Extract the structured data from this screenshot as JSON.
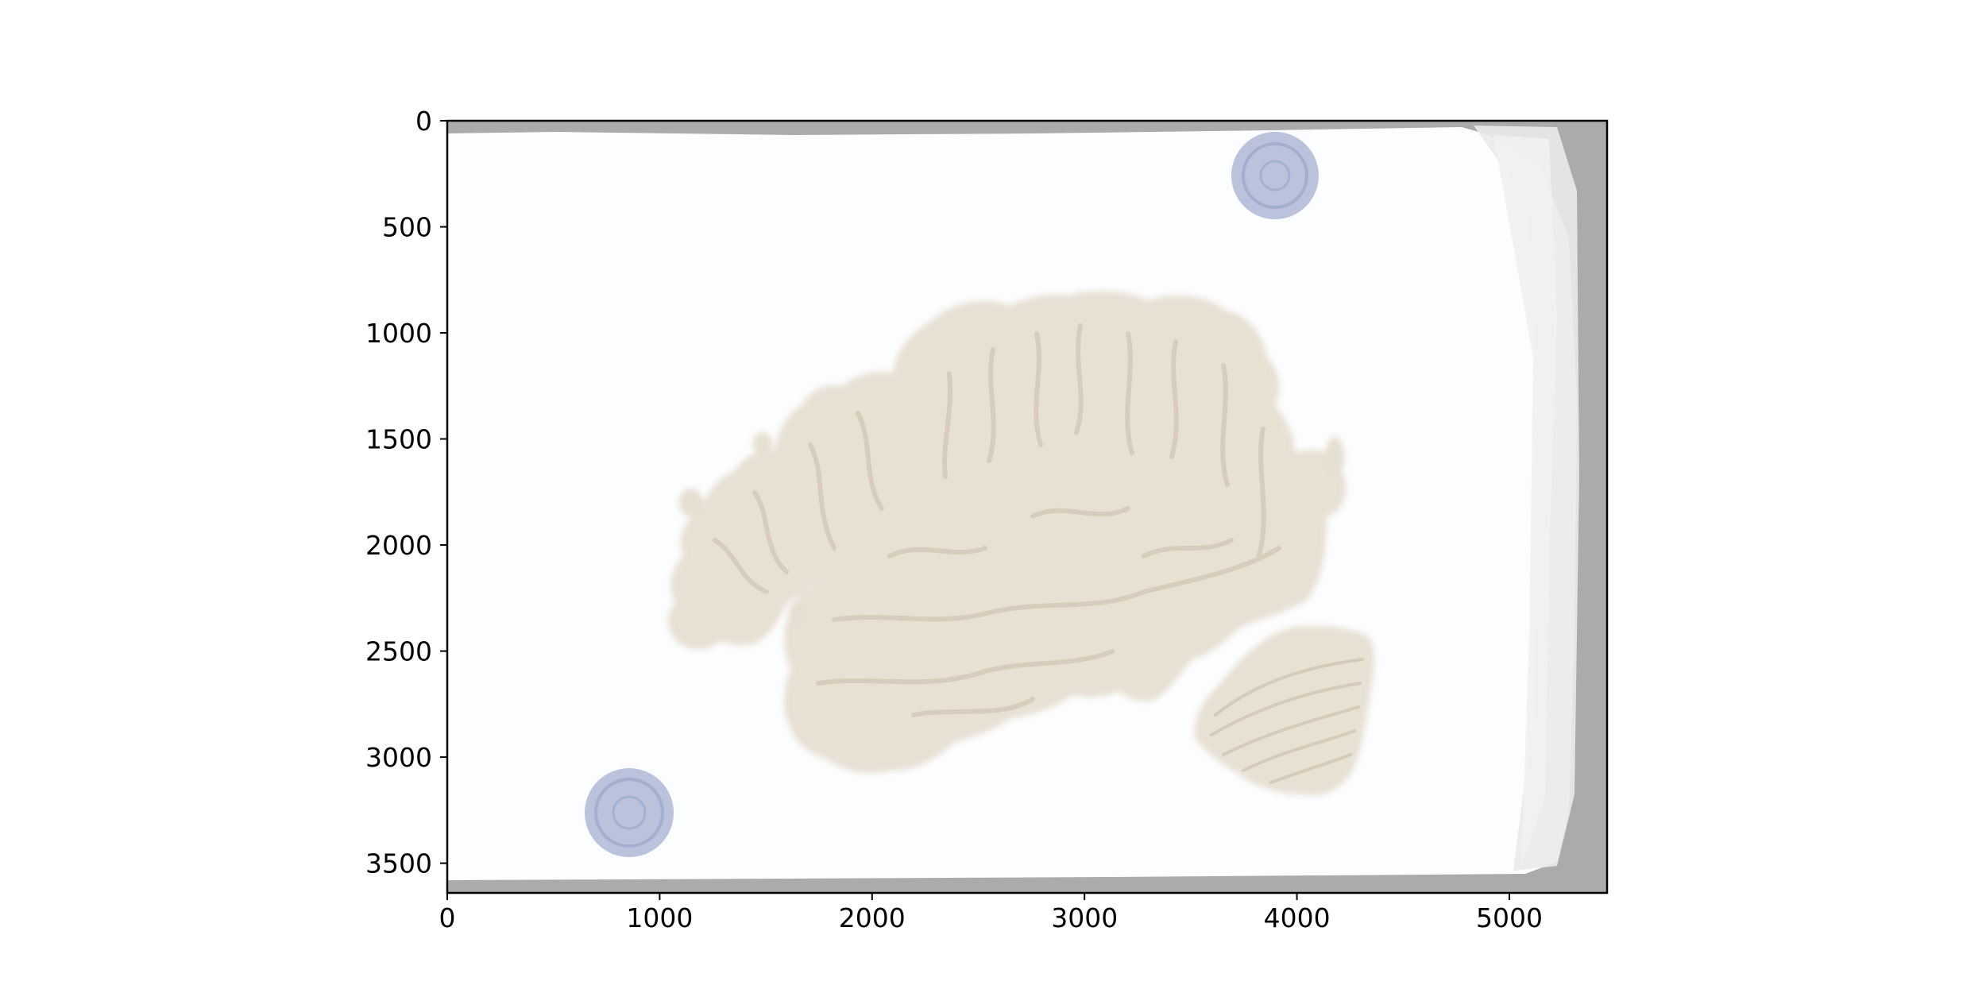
{
  "figure": {
    "x_axis": {
      "range": [
        0,
        5460
      ],
      "ticks": [
        0,
        1000,
        2000,
        3000,
        4000,
        5000
      ],
      "tick_labels": [
        "0",
        "1000",
        "2000",
        "3000",
        "4000",
        "5000"
      ]
    },
    "y_axis": {
      "range": [
        0,
        3640
      ],
      "inverted": true,
      "ticks": [
        0,
        500,
        1000,
        1500,
        2000,
        2500,
        3000,
        3500
      ],
      "tick_labels": [
        "0",
        "500",
        "1000",
        "1500",
        "2000",
        "2500",
        "3000",
        "3500"
      ]
    },
    "image": {
      "subject": "sagittal-brain-section-on-slide",
      "colors": {
        "slide": "#fcfdfe",
        "frame": "#a0a0a0",
        "tissue": "#e4dccd",
        "tissue_shadow": "#d8cebd",
        "marker": "#a9b3d4"
      },
      "markers": [
        {
          "x": 3890,
          "y": 250,
          "r": 200
        },
        {
          "x": 850,
          "y": 3280,
          "r": 205
        }
      ]
    }
  }
}
